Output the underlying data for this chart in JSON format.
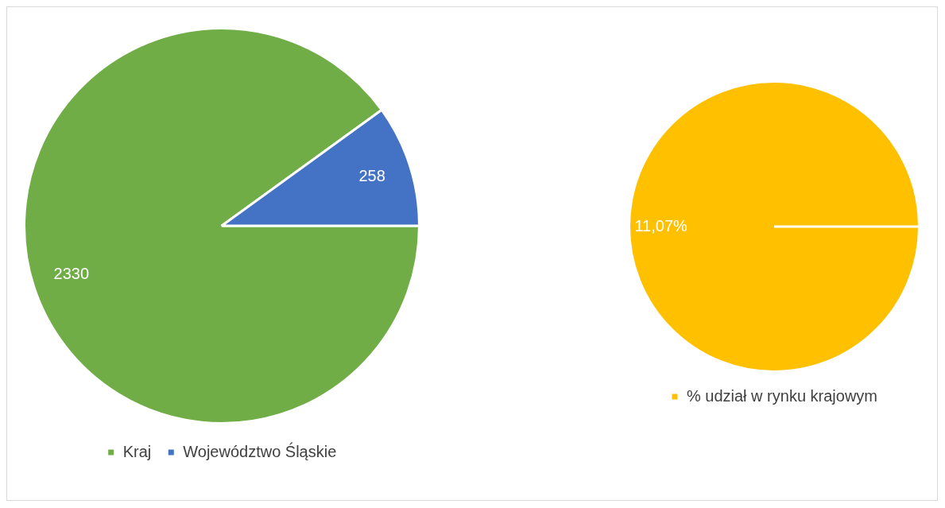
{
  "chart_data": [
    {
      "type": "pie",
      "categories": [
        "Kraj",
        "Województwo Śląskie"
      ],
      "values": [
        2330,
        258
      ],
      "colors": [
        "#70ad47",
        "#4472c4"
      ],
      "data_labels": true,
      "legend": "bottom"
    },
    {
      "type": "pie",
      "categories": [
        "% udział w rynku krajowym"
      ],
      "values": [
        11.07
      ],
      "colors": [
        "#ffc000"
      ],
      "value_labels": [
        "11,07%"
      ],
      "legend": "bottom"
    }
  ]
}
